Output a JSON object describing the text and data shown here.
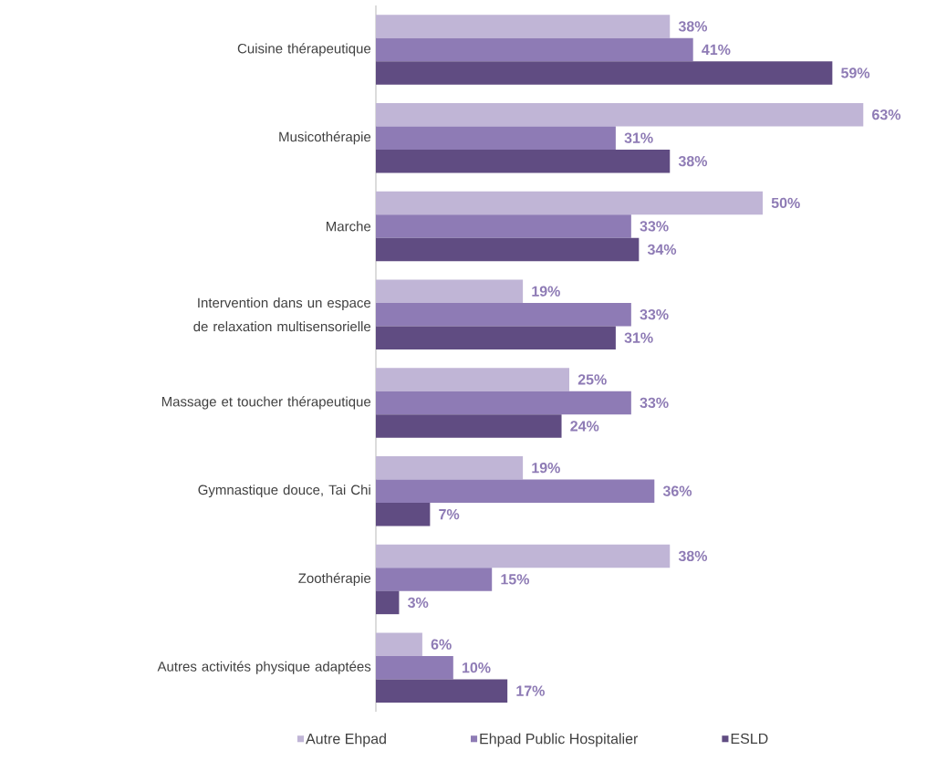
{
  "chart_data": {
    "type": "bar",
    "orientation": "horizontal",
    "categories": [
      "Cuisine thérapeutique",
      "Musicothérapie",
      "Marche",
      "Intervention dans un espace de relaxation multisensorielle",
      "Massage et toucher thérapeutique",
      "Gymnastique douce, Tai Chi",
      "Zoothérapie",
      "Autres activités physique adaptées"
    ],
    "series": [
      {
        "name": "Autre Ehpad",
        "color": "#c0b5d6",
        "values": [
          38,
          63,
          50,
          19,
          25,
          19,
          38,
          6
        ],
        "value_labels": [
          "38%",
          "63%",
          "50%",
          "19%",
          "25%",
          "19%",
          "38%",
          "6%"
        ]
      },
      {
        "name": "Ehpad Public Hospitalier",
        "color": "#8e7bb5",
        "values": [
          41,
          31,
          33,
          33,
          33,
          36,
          15,
          10
        ],
        "value_labels": [
          "41%",
          "31%",
          "33%",
          "33%",
          "33%",
          "36%",
          "15%",
          "10%"
        ]
      },
      {
        "name": "ESLD",
        "color": "#604c82",
        "values": [
          59,
          38,
          34,
          31,
          24,
          7,
          3,
          17
        ],
        "value_labels": [
          "59%",
          "38%",
          "34%",
          "31%",
          "24%",
          "7%",
          "3%",
          "17%"
        ]
      }
    ],
    "legend": "bottom"
  }
}
